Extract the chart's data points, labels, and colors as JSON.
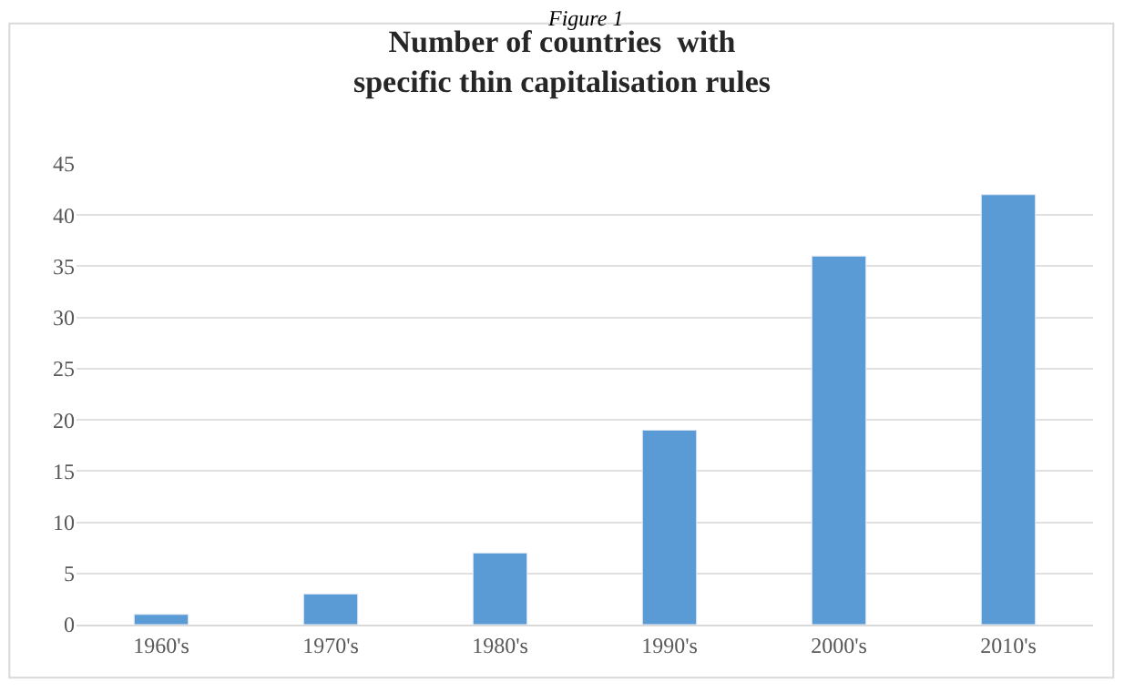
{
  "chart_data": {
    "type": "bar",
    "title": "Number of countries  with\nspecific thin capitalisation rules",
    "annotations": [
      "Figure 1"
    ],
    "categories": [
      "1960's",
      "1970's",
      "1980's",
      "1990's",
      "2000's",
      "2010's"
    ],
    "values": [
      1,
      3,
      7,
      19,
      36,
      42
    ],
    "color": "#5b9bd5",
    "ylim": [
      0,
      45
    ],
    "yticks": [
      0,
      5,
      10,
      15,
      20,
      25,
      30,
      35,
      40,
      45
    ],
    "grid": "y"
  }
}
